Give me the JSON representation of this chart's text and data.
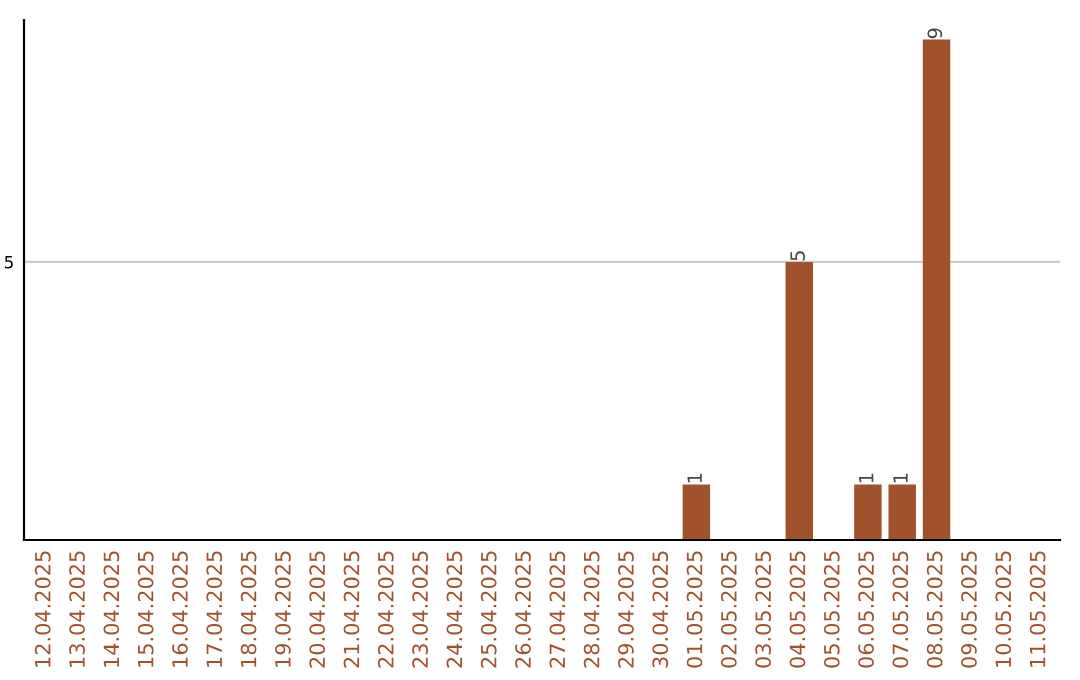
{
  "chart_data": {
    "type": "bar",
    "categories": [
      "12.04.2025",
      "13.04.2025",
      "14.04.2025",
      "15.04.2025",
      "16.04.2025",
      "17.04.2025",
      "18.04.2025",
      "19.04.2025",
      "20.04.2025",
      "21.04.2025",
      "22.04.2025",
      "23.04.2025",
      "24.04.2025",
      "25.04.2025",
      "26.04.2025",
      "27.04.2025",
      "28.04.2025",
      "29.04.2025",
      "30.04.2025",
      "01.05.2025",
      "02.05.2025",
      "03.05.2025",
      "04.05.2025",
      "05.05.2025",
      "06.05.2025",
      "07.05.2025",
      "08.05.2025",
      "09.05.2025",
      "10.05.2025",
      "11.05.2025"
    ],
    "values": [
      null,
      null,
      null,
      null,
      null,
      null,
      null,
      null,
      null,
      null,
      null,
      null,
      null,
      null,
      null,
      null,
      null,
      null,
      null,
      1,
      null,
      null,
      5,
      null,
      1,
      1,
      9,
      null,
      null,
      null
    ],
    "data_labels": true,
    "color": "#a0522d",
    "ylim": [
      0,
      9.35
    ],
    "yticks": [
      5
    ],
    "grid": "y"
  }
}
